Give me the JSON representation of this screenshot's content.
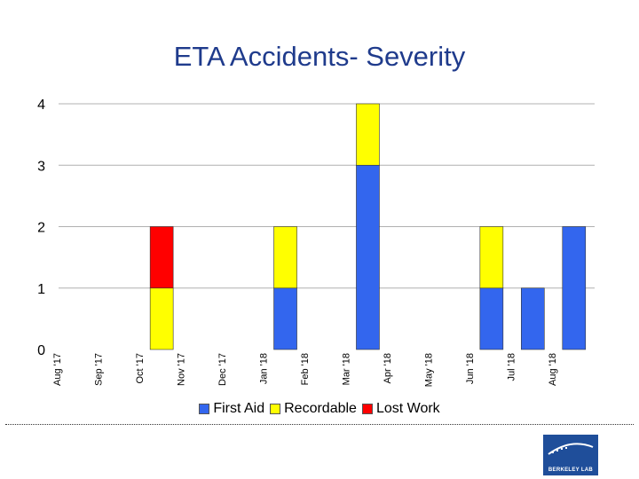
{
  "slide": {
    "title": "ETA Accidents- Severity"
  },
  "logo": {
    "text": "BERKELEY LAB"
  },
  "chart_data": {
    "type": "bar",
    "stacked": true,
    "title": "ETA Accidents- Severity",
    "categories": [
      "Aug '17",
      "Sep '17",
      "Oct '17",
      "Nov '17",
      "Dec '17",
      "Jan '18",
      "Feb '18",
      "Mar '18",
      "Apr '18",
      "May '18",
      "Jun '18",
      "Jul '18",
      "Aug '18"
    ],
    "series": [
      {
        "name": "First Aid",
        "color": "#3366ee",
        "values": [
          0,
          0,
          0,
          0,
          0,
          1,
          0,
          3,
          0,
          0,
          1,
          1,
          2
        ]
      },
      {
        "name": "Recordable",
        "color": "#ffff00",
        "values": [
          0,
          0,
          1,
          0,
          0,
          1,
          0,
          1,
          0,
          0,
          1,
          0,
          0
        ]
      },
      {
        "name": "Lost Work",
        "color": "#ff0000",
        "values": [
          0,
          0,
          1,
          0,
          0,
          0,
          0,
          0,
          0,
          0,
          0,
          0,
          0
        ]
      }
    ],
    "yticks": [
      0,
      1,
      2,
      3,
      4
    ],
    "ylim": [
      0,
      4
    ],
    "xlabel": "",
    "ylabel": "",
    "grid": true,
    "legend_position": "bottom"
  }
}
